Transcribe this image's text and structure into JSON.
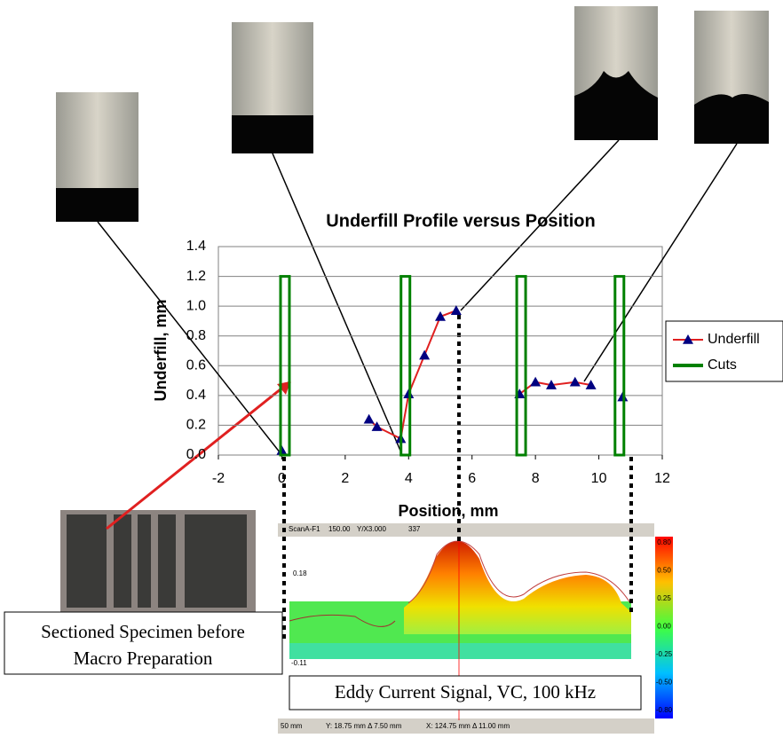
{
  "chart_data": {
    "type": "line",
    "title": "Underfill Profile versus Position",
    "x_label": "Position, mm",
    "y_label": "Underfill, mm",
    "xlim": [
      -2,
      12
    ],
    "xticks": [
      -2,
      0,
      2,
      4,
      6,
      8,
      10,
      12
    ],
    "ylim": [
      0,
      1.4
    ],
    "yticks": [
      {
        "value": 0,
        "label": "0.0"
      },
      0.2,
      0.4,
      0.6,
      0.8,
      {
        "value": 1,
        "label": "1.0"
      },
      1.2,
      1.4
    ],
    "grid": true,
    "legend": "right",
    "series": [
      {
        "name": "Underfill",
        "color": "#e02020",
        "marker_color": "#000080",
        "x": [
          0,
          null,
          2.75,
          3,
          3.75,
          4,
          4.5,
          5,
          5.5,
          null,
          7.5,
          8,
          8.5,
          9.25,
          9.75,
          null,
          10.75
        ],
        "values": [
          0.03,
          null,
          0.24,
          0.19,
          0.11,
          0.41,
          0.67,
          0.93,
          0.97,
          null,
          0.41,
          0.49,
          0.47,
          0.49,
          0.47,
          null,
          0.39
        ]
      },
      {
        "name": "Cuts",
        "color": "#008000",
        "x": [
          0.1,
          3.9,
          7.55,
          10.65
        ],
        "values": [
          1.2,
          1.2,
          1.2,
          1.2
        ]
      }
    ]
  },
  "captions": {
    "specimen": [
      "Sectioned Specimen before",
      "Macro Preparation"
    ],
    "eddy": "Eddy Current Signal, VC, 100 kHz"
  },
  "ec_display": {
    "toolbar": [
      "ScanA-F1",
      "150.00",
      "Y/X3.000",
      "337"
    ],
    "axis": [
      "0.18",
      "-0.11"
    ],
    "colorbar": [
      "0.80",
      "0.50",
      "0.25",
      "0.00",
      "-0.25",
      "-0.50",
      "-0.80"
    ],
    "status": [
      "50 mm",
      "Y: 18.75 mm Δ 7.50 mm",
      "X: 124.75 mm Δ 11.00 mm"
    ]
  }
}
